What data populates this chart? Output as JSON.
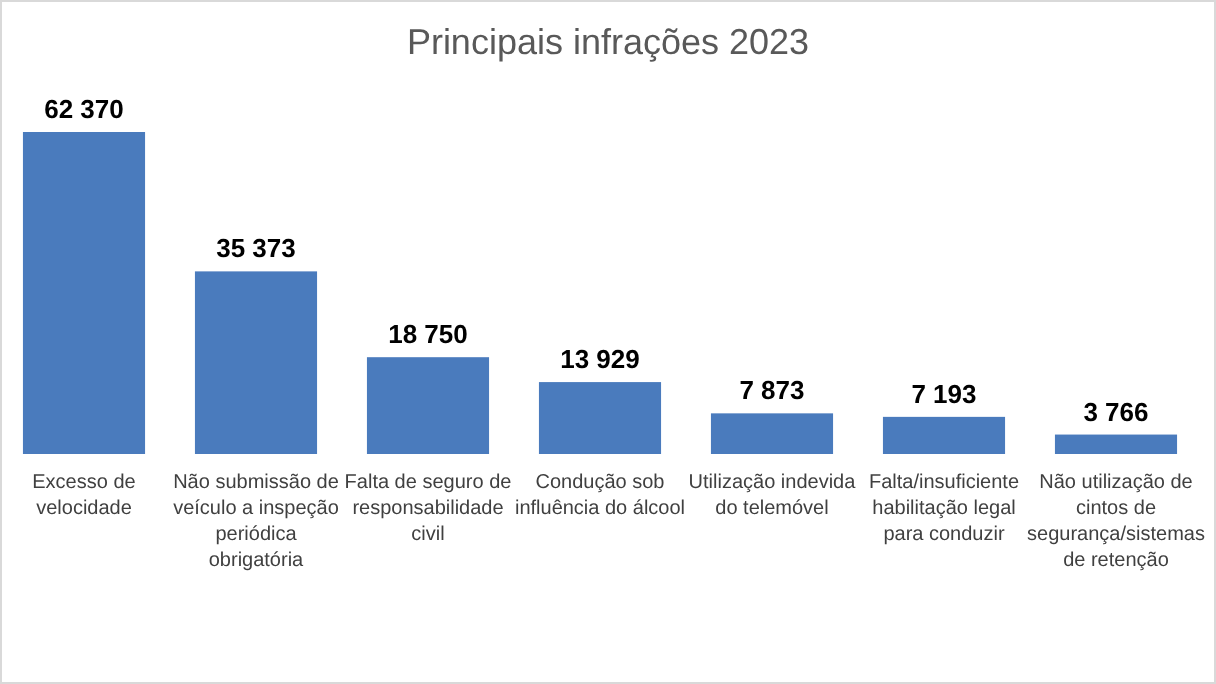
{
  "chart_data": {
    "type": "bar",
    "title": "Principais infrações 2023",
    "categories": [
      "Excesso de velocidade",
      "Não submissão de veículo a inspeção periódica obrigatória",
      "Falta de seguro de responsabilidade civil",
      "Condução sob influência do álcool",
      "Utilização indevida do telemóvel",
      "Falta/insuficiente habilitação legal para conduzir",
      "Não utilização de cintos de segurança/sistemas de retenção"
    ],
    "values": [
      62370,
      35373,
      18750,
      13929,
      7873,
      7193,
      3766
    ],
    "value_labels": [
      "62 370",
      "35 373",
      "18 750",
      "13 929",
      "7 873",
      "7 193",
      "3 766"
    ],
    "color": "#4a7bbd"
  }
}
